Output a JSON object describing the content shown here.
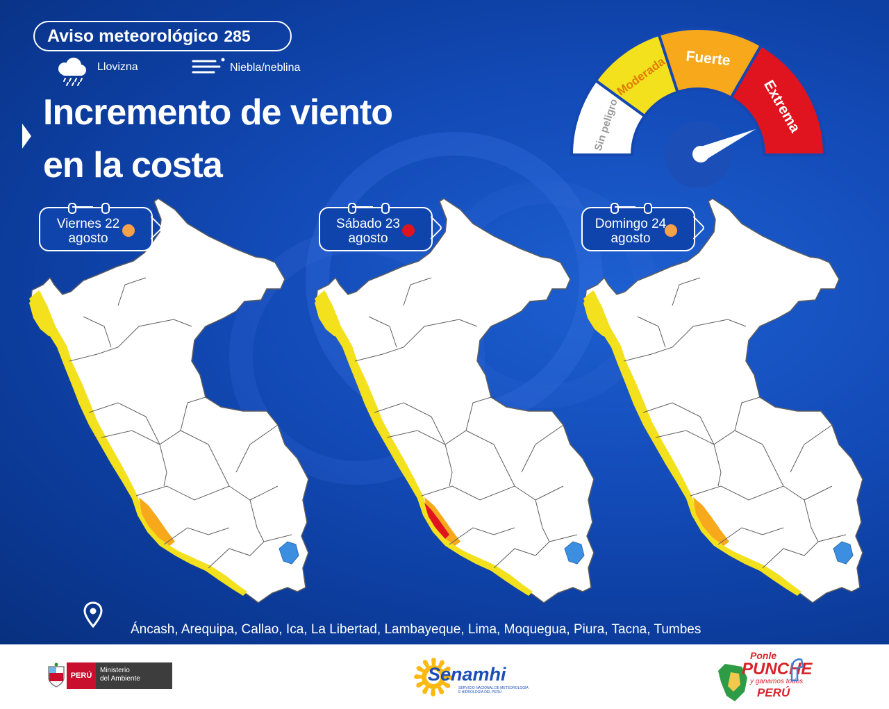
{
  "header": {
    "notice_label": "Aviso meteorológico",
    "notice_number": "285",
    "legend": [
      {
        "icon": "drizzle-icon",
        "label": "Llovizna"
      },
      {
        "icon": "fog-icon",
        "label": "Niebla/neblina"
      }
    ]
  },
  "title": {
    "line1": "Incremento de viento",
    "line2": "en la costa"
  },
  "gauge": {
    "levels": [
      {
        "label": "Sin peligro",
        "color": "#ffffff",
        "text_color": "#9a9a9a"
      },
      {
        "label": "Moderada",
        "color": "#f3e11e",
        "text_color": "#e07b00"
      },
      {
        "label": "Fuerte",
        "color": "#f7a81b",
        "text_color": "#ffffff"
      },
      {
        "label": "Extrema",
        "color": "#e0141e",
        "text_color": "#ffffff"
      }
    ]
  },
  "days": [
    {
      "line1": "Viernes 22",
      "line2": "agosto",
      "level_color": "#f7a24b"
    },
    {
      "line1": "Sábado 23",
      "line2": "agosto",
      "level_color": "#e0141e"
    },
    {
      "line1": "Domingo 24",
      "line2": "agosto",
      "level_color": "#f7a24b"
    }
  ],
  "regions": "Áncash, Arequipa, Callao, Ica, La Libertad, Lambayeque, Lima, Moquegua, Piura, Tacna, Tumbes",
  "footer": {
    "ministry_country": "PERÚ",
    "ministry_name_1": "Ministerio",
    "ministry_name_2": "del Ambiente",
    "senamhi_name": "Senamhi",
    "senamhi_sub_1": "SERVICIO NACIONAL DE METEOROLOGÍA",
    "senamhi_sub_2": "E HIDROLOGÍA DEL PERÚ",
    "campaign_1": "Ponle",
    "campaign_2": "PUNCHE",
    "campaign_3": "y ganamos todos",
    "campaign_4": "PERÚ"
  },
  "colors": {
    "background": "#134bb8",
    "moderate": "#f3e11e",
    "strong": "#f7a81b",
    "extreme": "#e0141e",
    "lake": "#3b8ee0"
  }
}
